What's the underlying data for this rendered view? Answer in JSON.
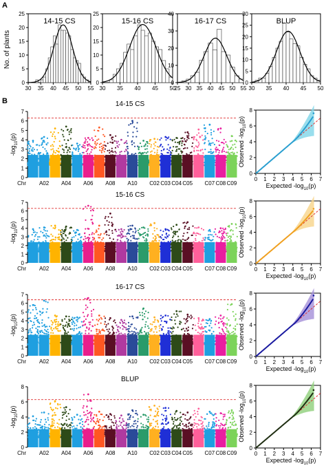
{
  "panels": {
    "A": "A",
    "B": "B"
  },
  "hist_ylabel": "No. of plants",
  "qq_xlabel": "Expected -log",
  "qq_ylabel": "Observed -log",
  "log_sub": "10",
  "log_p": "(p)",
  "manhattan_ylabel": "-log",
  "chr_axis": [
    "Chr",
    "A02",
    "A04",
    "A06",
    "A08",
    "A10",
    "C02",
    "C03",
    "C04",
    "C05",
    "C07",
    "C08",
    "C09"
  ],
  "chr_colors": [
    "#1f9fe0",
    "#1f9fe0",
    "#ffb300",
    "#2d4a18",
    "#1f9fe0",
    "#e91e8c",
    "#ff5722",
    "#5a0f24",
    "#b03aa0",
    "#2a4a99",
    "#2a9b6a",
    "#ffb020",
    "#1f2fd6",
    "#2d4a18",
    "#5a0f24",
    "#ff5f9a",
    "#1f9fe0",
    "#e91ea0",
    "#7cd35a"
  ],
  "chart_data": [
    {
      "type": "histogram",
      "title": "14-15 CS",
      "xlim": [
        30,
        55
      ],
      "ylim": [
        0,
        25
      ],
      "xticks": [
        30,
        35,
        40,
        45,
        50,
        55
      ],
      "yticks": [
        0,
        5,
        10,
        15,
        20,
        25
      ],
      "bins": [
        30,
        31,
        32,
        33,
        34,
        35,
        36,
        37,
        38,
        39,
        40,
        41,
        42,
        43,
        44,
        45,
        46,
        47,
        48,
        49,
        50,
        51,
        52,
        53,
        54,
        55
      ],
      "counts": [
        0,
        0,
        0,
        1,
        0,
        1,
        2,
        5,
        9,
        13,
        17,
        14,
        21,
        19,
        19,
        18,
        17,
        12,
        9,
        8,
        7,
        3,
        2,
        1,
        0
      ],
      "fit": "normal"
    },
    {
      "type": "histogram",
      "title": "15-16 CS",
      "xlim": [
        30,
        50
      ],
      "ylim": [
        0,
        25
      ],
      "xticks": [
        30,
        35,
        40,
        45,
        50
      ],
      "yticks": [
        0,
        5,
        10,
        15,
        20,
        25
      ],
      "bins": [
        30,
        31,
        32,
        33,
        34,
        35,
        36,
        37,
        38,
        39,
        40,
        41,
        42,
        43,
        44,
        45,
        46,
        47,
        48,
        49,
        50
      ],
      "counts": [
        0,
        0,
        1,
        3,
        5,
        7,
        11,
        14,
        12,
        17,
        21,
        19,
        17,
        18,
        15,
        13,
        12,
        8,
        5,
        2
      ],
      "fit": "normal"
    },
    {
      "type": "histogram",
      "title": "16-17 CS",
      "xlim": [
        25,
        55
      ],
      "ylim": [
        0,
        40
      ],
      "xticks": [
        25,
        30,
        35,
        40,
        45,
        50,
        55
      ],
      "yticks": [
        0,
        10,
        20,
        30,
        40
      ],
      "bins": [
        25,
        27,
        29,
        31,
        33,
        35,
        37,
        39,
        41,
        43,
        45,
        47,
        49,
        51,
        53,
        55
      ],
      "counts": [
        0,
        1,
        2,
        4,
        6,
        13,
        18,
        23,
        19,
        31,
        18,
        16,
        9,
        4,
        2
      ],
      "fit": "normal"
    },
    {
      "type": "histogram",
      "title": "BLUP",
      "xlim": [
        30,
        50
      ],
      "ylim": [
        0,
        30
      ],
      "xticks": [
        30,
        35,
        40,
        45,
        50
      ],
      "yticks": [
        0,
        5,
        10,
        15,
        20,
        25,
        30
      ],
      "bins": [
        30,
        31,
        32,
        33,
        34,
        35,
        36,
        37,
        38,
        39,
        40,
        41,
        42,
        43,
        44,
        45,
        46,
        47,
        48,
        49,
        50
      ],
      "counts": [
        0,
        1,
        2,
        2,
        4,
        7,
        11,
        15,
        18,
        26,
        22,
        19,
        17,
        16,
        11,
        8,
        6,
        3,
        2,
        1
      ],
      "fit": "normal"
    },
    {
      "type": "scatter",
      "subtype": "manhattan",
      "title": "14-15 CS",
      "ylim": [
        0,
        7
      ],
      "yticks": [
        0,
        1,
        2,
        3,
        4,
        5,
        6,
        7
      ],
      "threshold": 6.3,
      "peaks": [
        3.9,
        4.3,
        5.2,
        5.4,
        3.6,
        4.2,
        5.3,
        4.5,
        4.0,
        6.0,
        3.9,
        4.1,
        4.3,
        4.2,
        4.8,
        5.1,
        5.6,
        5.2,
        4.4
      ]
    },
    {
      "type": "scatter",
      "subtype": "manhattan",
      "title": "15-16 CS",
      "ylim": [
        0,
        7
      ],
      "yticks": [
        0,
        1,
        2,
        3,
        4,
        5,
        6,
        7
      ],
      "threshold": 6.3,
      "peaks": [
        3.9,
        4.1,
        4.3,
        4.2,
        3.8,
        6.6,
        4.3,
        5.7,
        3.9,
        4.3,
        4.1,
        4.6,
        3.9,
        4.4,
        4.7,
        4.1,
        3.8,
        4.0,
        4.5
      ]
    },
    {
      "type": "scatter",
      "subtype": "manhattan",
      "title": "16-17 CS",
      "ylim": [
        0,
        7
      ],
      "yticks": [
        0,
        1,
        2,
        3,
        4,
        5,
        6,
        7
      ],
      "threshold": 6.4,
      "peaks": [
        5.8,
        6.3,
        4.6,
        4.5,
        4.4,
        6.6,
        4.6,
        4.3,
        4.1,
        4.5,
        5.4,
        4.4,
        4.6,
        5.1,
        4.7,
        4.3,
        4.2,
        4.6,
        5.9
      ]
    },
    {
      "type": "scatter",
      "subtype": "manhattan",
      "title": "BLUP",
      "ylim": [
        0,
        8
      ],
      "yticks": [
        0,
        2,
        4,
        6,
        8
      ],
      "threshold": 6.3,
      "peaks": [
        4.1,
        4.6,
        6.1,
        5.3,
        4.3,
        7.0,
        4.7,
        4.4,
        4.2,
        4.9,
        4.3,
        5.5,
        5.2,
        4.8,
        4.6,
        5.1,
        4.7,
        4.5,
        4.9
      ]
    },
    {
      "type": "scatter",
      "subtype": "qq",
      "xlim": [
        0,
        7
      ],
      "ylim": [
        0,
        8
      ],
      "xticks": [
        0,
        1,
        2,
        3,
        4,
        5,
        6,
        7
      ],
      "yticks": [
        0,
        2,
        4,
        6,
        8
      ],
      "color": "#2a9fd0",
      "band": "#7fd6e8",
      "end": 7.6
    },
    {
      "type": "scatter",
      "subtype": "qq",
      "xlim": [
        0,
        7
      ],
      "ylim": [
        0,
        8
      ],
      "xticks": [
        0,
        1,
        2,
        3,
        4,
        5,
        6,
        7
      ],
      "yticks": [
        0,
        2,
        4,
        6,
        8
      ],
      "color": "#f0a020",
      "band": "#f7d48a",
      "end": 7.0
    },
    {
      "type": "scatter",
      "subtype": "qq",
      "xlim": [
        0,
        7
      ],
      "ylim": [
        0,
        8
      ],
      "xticks": [
        0,
        1,
        2,
        3,
        4,
        5,
        6,
        7
      ],
      "yticks": [
        0,
        2,
        4,
        6,
        8
      ],
      "color": "#1a1aa0",
      "band": "#a48fd8",
      "end": 7.7
    },
    {
      "type": "scatter",
      "subtype": "qq",
      "xlim": [
        0,
        7
      ],
      "ylim": [
        0,
        8
      ],
      "xticks": [
        0,
        1,
        2,
        3,
        4,
        5,
        6,
        7
      ],
      "yticks": [
        0,
        2,
        4,
        6,
        8
      ],
      "color": "#1f2e12",
      "band": "#8fcf7a",
      "end": 7.4
    }
  ]
}
